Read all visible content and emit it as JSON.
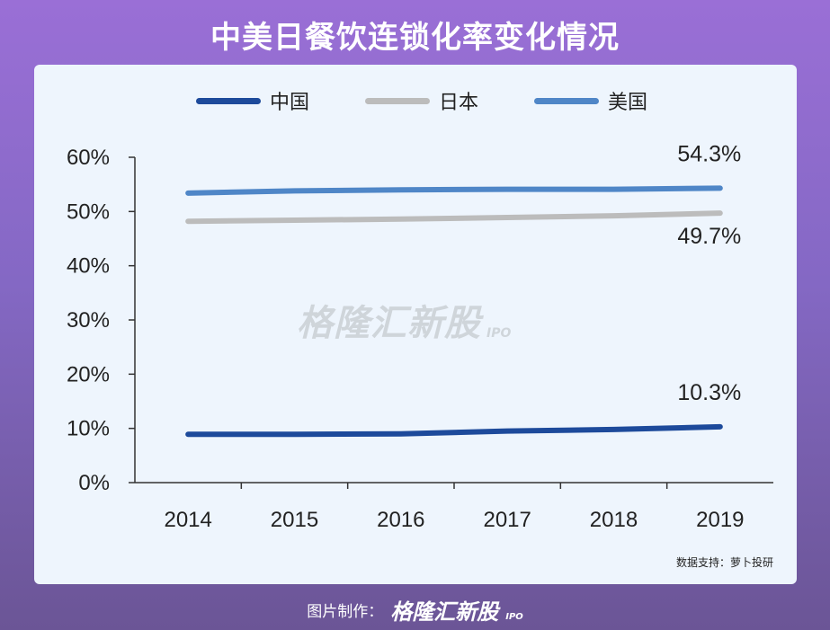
{
  "header": {
    "title": "中美日餐饮连锁化率变化情况"
  },
  "chart_data": {
    "type": "line",
    "title": "中美日餐饮连锁化率变化情况",
    "categories": [
      "2014",
      "2015",
      "2016",
      "2017",
      "2018",
      "2019"
    ],
    "ylim": [
      0,
      60
    ],
    "yticks": [
      "0%",
      "10%",
      "20%",
      "30%",
      "40%",
      "50%",
      "60%"
    ],
    "grid": false,
    "legend_position": "top",
    "series": [
      {
        "name": "中国",
        "color": "#1d4a9b",
        "values": [
          8.9,
          8.9,
          9.0,
          9.5,
          9.8,
          10.3
        ],
        "end_label": "10.3%"
      },
      {
        "name": "日本",
        "color": "#bcbcbc",
        "values": [
          48.2,
          48.4,
          48.6,
          48.9,
          49.2,
          49.7
        ],
        "end_label": "49.7%"
      },
      {
        "name": "美国",
        "color": "#4f86c7",
        "values": [
          53.4,
          53.8,
          54.0,
          54.1,
          54.1,
          54.3
        ],
        "end_label": "54.3%"
      }
    ]
  },
  "watermark": {
    "text": "格隆汇新股",
    "sub": "IPO"
  },
  "source": {
    "text": "数据支持：萝卜投研"
  },
  "footer": {
    "label": "图片制作：",
    "brand": "格隆汇新股",
    "sub": "IPO"
  }
}
